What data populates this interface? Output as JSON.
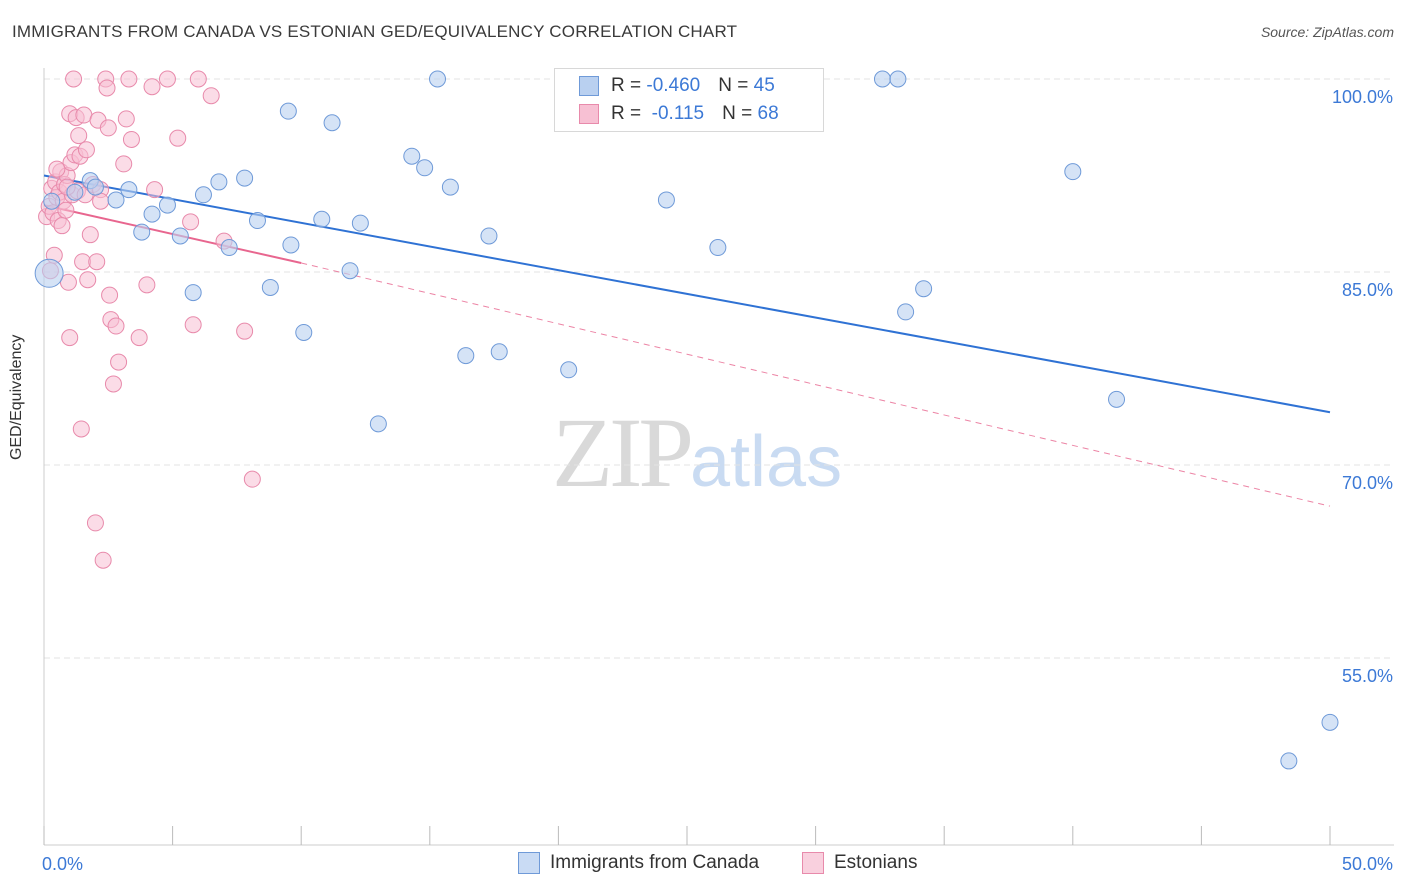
{
  "title": "IMMIGRANTS FROM CANADA VS ESTONIAN GED/EQUIVALENCY CORRELATION CHART",
  "source": "Source: ZipAtlas.com",
  "watermark": {
    "zip": "ZIP",
    "atlas": "atlas"
  },
  "legend_top": {
    "rows": [
      {
        "r_label": "R = ",
        "r_value": "-0.460",
        "n_label": "N = ",
        "n_value": "45"
      },
      {
        "r_label": "R = ",
        "r_value": " -0.115",
        "n_label": "N = ",
        "n_value": "68"
      }
    ]
  },
  "legend_bottom": {
    "items": [
      {
        "label": "Immigrants from Canada"
      },
      {
        "label": "Estonians"
      }
    ]
  },
  "colors": {
    "blue_fill": "#b9d0f0",
    "blue_stroke": "#6f9ad8",
    "blue_line": "#2f72d4",
    "pink_fill": "#f7c0d3",
    "pink_stroke": "#e88aab",
    "pink_line": "#e8668f",
    "axis_text": "#3c79d6",
    "grid": "#e3e3e3"
  },
  "chart_data": {
    "type": "scatter",
    "title": "IMMIGRANTS FROM CANADA VS ESTONIAN GED/EQUIVALENCY CORRELATION CHART",
    "xlabel": "",
    "ylabel": "GED/Equivalency",
    "xlim": [
      0,
      50
    ],
    "ylim": [
      40,
      103
    ],
    "x_tick_labels": [
      "0.0%",
      "50.0%"
    ],
    "y_ticks": [
      55,
      70,
      85,
      100
    ],
    "y_tick_labels": [
      "55.0%",
      "70.0%",
      "85.0%",
      "100.0%"
    ],
    "grid": true,
    "series": [
      {
        "name": "Immigrants from Canada",
        "r": -0.46,
        "n": 45,
        "trend": {
          "x": [
            0,
            50
          ],
          "y": [
            92.5,
            74.1
          ],
          "style": "solid"
        },
        "points": [
          [
            0.2,
            84.9
          ],
          [
            1.2,
            91.2
          ],
          [
            1.8,
            92.1
          ],
          [
            2.8,
            90.6
          ],
          [
            3.3,
            91.4
          ],
          [
            3.8,
            88.1
          ],
          [
            4.2,
            89.5
          ],
          [
            4.8,
            90.2
          ],
          [
            5.3,
            87.8
          ],
          [
            5.8,
            83.4
          ],
          [
            6.2,
            91.0
          ],
          [
            6.8,
            92.0
          ],
          [
            7.2,
            86.9
          ],
          [
            7.8,
            92.3
          ],
          [
            8.3,
            89.0
          ],
          [
            8.8,
            83.8
          ],
          [
            9.5,
            97.5
          ],
          [
            9.6,
            87.1
          ],
          [
            10.1,
            80.3
          ],
          [
            10.8,
            89.1
          ],
          [
            11.2,
            96.6
          ],
          [
            11.9,
            85.1
          ],
          [
            12.3,
            88.8
          ],
          [
            13.0,
            73.2
          ],
          [
            14.3,
            94.0
          ],
          [
            14.8,
            93.1
          ],
          [
            15.3,
            100.0
          ],
          [
            15.8,
            91.6
          ],
          [
            16.4,
            78.5
          ],
          [
            17.3,
            87.8
          ],
          [
            17.7,
            78.8
          ],
          [
            20.4,
            77.4
          ],
          [
            24.2,
            90.6
          ],
          [
            26.0,
            100.0
          ],
          [
            26.2,
            86.9
          ],
          [
            32.6,
            100.0
          ],
          [
            33.2,
            100.0
          ],
          [
            33.5,
            81.9
          ],
          [
            34.2,
            83.7
          ],
          [
            40.0,
            92.8
          ],
          [
            41.7,
            75.1
          ],
          [
            50.0,
            50.0
          ],
          [
            48.4,
            47.0
          ],
          [
            0.3,
            90.5
          ],
          [
            2.0,
            91.6
          ]
        ]
      },
      {
        "name": "Estonians",
        "r": -0.115,
        "n": 68,
        "trend": {
          "x": [
            0,
            10
          ],
          "y": [
            90.2,
            85.7
          ],
          "style": "solid",
          "extended_to": {
            "x": 50,
            "y": 66.8
          }
        },
        "points": [
          [
            0.1,
            89.3
          ],
          [
            0.2,
            90.1
          ],
          [
            0.25,
            85.1
          ],
          [
            0.3,
            91.5
          ],
          [
            0.35,
            89.6
          ],
          [
            0.4,
            86.3
          ],
          [
            0.45,
            92.0
          ],
          [
            0.5,
            90.8
          ],
          [
            0.55,
            89.0
          ],
          [
            0.6,
            91.2
          ],
          [
            0.65,
            92.8
          ],
          [
            0.7,
            88.6
          ],
          [
            0.75,
            90.5
          ],
          [
            0.8,
            91.8
          ],
          [
            0.85,
            89.8
          ],
          [
            0.9,
            92.5
          ],
          [
            0.95,
            84.2
          ],
          [
            1.0,
            97.3
          ],
          [
            1.0,
            79.9
          ],
          [
            1.05,
            93.5
          ],
          [
            1.1,
            91.0
          ],
          [
            1.15,
            100.0
          ],
          [
            1.2,
            94.1
          ],
          [
            1.25,
            97.0
          ],
          [
            1.3,
            91.3
          ],
          [
            1.35,
            95.6
          ],
          [
            1.4,
            94.0
          ],
          [
            1.45,
            72.8
          ],
          [
            1.5,
            85.8
          ],
          [
            1.55,
            97.2
          ],
          [
            1.6,
            91.0
          ],
          [
            1.65,
            94.5
          ],
          [
            1.7,
            84.4
          ],
          [
            1.9,
            91.8
          ],
          [
            2.0,
            65.5
          ],
          [
            2.05,
            85.8
          ],
          [
            2.1,
            96.8
          ],
          [
            2.2,
            91.4
          ],
          [
            2.3,
            62.6
          ],
          [
            2.4,
            100.0
          ],
          [
            2.45,
            99.3
          ],
          [
            2.5,
            96.2
          ],
          [
            2.55,
            83.2
          ],
          [
            2.6,
            81.3
          ],
          [
            2.7,
            76.3
          ],
          [
            2.8,
            80.8
          ],
          [
            2.9,
            78.0
          ],
          [
            3.1,
            93.4
          ],
          [
            3.2,
            96.9
          ],
          [
            3.3,
            100.0
          ],
          [
            3.4,
            95.3
          ],
          [
            3.7,
            79.9
          ],
          [
            4.0,
            84.0
          ],
          [
            4.2,
            99.4
          ],
          [
            4.3,
            91.4
          ],
          [
            4.8,
            100.0
          ],
          [
            5.2,
            95.4
          ],
          [
            5.7,
            88.9
          ],
          [
            5.8,
            80.9
          ],
          [
            6.0,
            100.0
          ],
          [
            6.5,
            98.7
          ],
          [
            7.0,
            87.4
          ],
          [
            7.8,
            80.4
          ],
          [
            8.1,
            68.9
          ],
          [
            1.8,
            87.9
          ],
          [
            2.2,
            90.5
          ],
          [
            0.9,
            91.6
          ],
          [
            0.5,
            93.0
          ]
        ]
      }
    ]
  }
}
